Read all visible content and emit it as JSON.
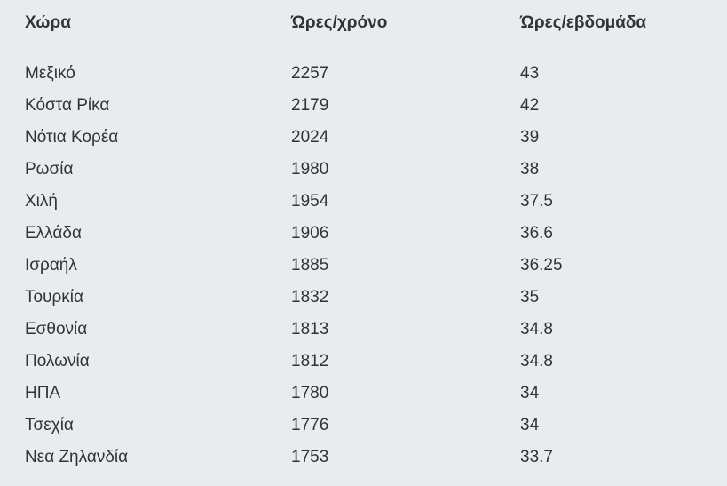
{
  "table": {
    "headers": [
      "Χώρα",
      "Ώρες/χρόνο",
      "Ώρες/εβδομάδα"
    ],
    "rows": [
      [
        "Μεξικό",
        "2257",
        "43"
      ],
      [
        "Κόστα Ρίκα",
        "2179",
        "42"
      ],
      [
        "Νότια Κορέα",
        "2024",
        "39"
      ],
      [
        "Ρωσία",
        "1980",
        "38"
      ],
      [
        "Χιλή",
        "1954",
        "37.5"
      ],
      [
        "Ελλάδα",
        "1906",
        "36.6"
      ],
      [
        "Ισραήλ",
        "1885",
        "36.25"
      ],
      [
        "Τουρκία",
        "1832",
        "35"
      ],
      [
        "Εσθονία",
        "1813",
        "34.8"
      ],
      [
        "Πολωνία",
        "1812",
        "34.8"
      ],
      [
        "ΗΠΑ",
        "1780",
        "34"
      ],
      [
        "Τσεχία",
        "1776",
        "34"
      ],
      [
        "Νεα Ζηλανδία",
        "1753",
        "33.7"
      ]
    ]
  }
}
